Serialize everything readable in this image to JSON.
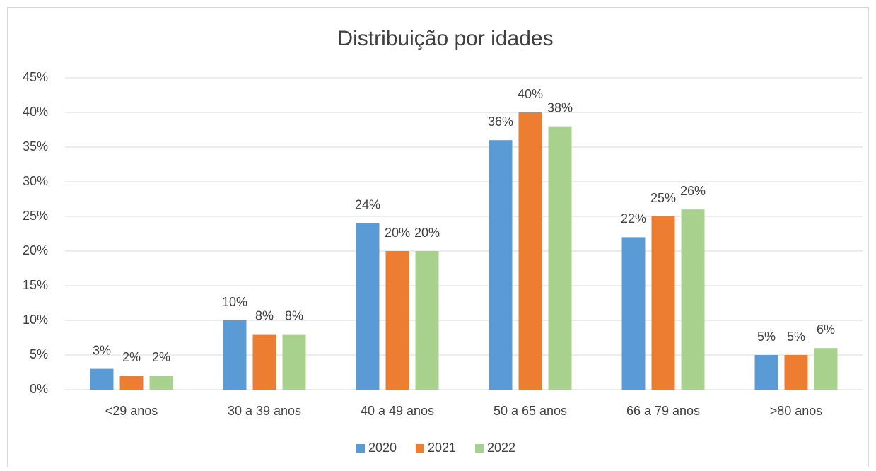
{
  "chart_data": {
    "type": "bar",
    "title": "Distribuição por idades",
    "categories": [
      "<29 anos",
      "30 a 39 anos",
      "40 a 49 anos",
      "50 a 65 anos",
      "66 a 79 anos",
      ">80 anos"
    ],
    "series": [
      {
        "name": "2020",
        "color": "#5b9bd5",
        "values": [
          3,
          10,
          24,
          36,
          22,
          5
        ],
        "value_labels": [
          "3%",
          "10%",
          "24%",
          "36%",
          "22%",
          "5%"
        ]
      },
      {
        "name": "2021",
        "color": "#ed7d31",
        "values": [
          2,
          8,
          20,
          40,
          25,
          5
        ],
        "value_labels": [
          "2%",
          "8%",
          "20%",
          "40%",
          "25%",
          "5%"
        ]
      },
      {
        "name": "2022",
        "color": "#a9d18e",
        "values": [
          2,
          8,
          20,
          38,
          26,
          6
        ],
        "value_labels": [
          "2%",
          "8%",
          "20%",
          "38%",
          "26%",
          "6%"
        ]
      }
    ],
    "ylim": [
      0,
      45
    ],
    "yticks": [
      {
        "value": 0,
        "label": "0%"
      },
      {
        "value": 5,
        "label": "5%"
      },
      {
        "value": 10,
        "label": "10%"
      },
      {
        "value": 15,
        "label": "15%"
      },
      {
        "value": 20,
        "label": "20%"
      },
      {
        "value": 25,
        "label": "25%"
      },
      {
        "value": 30,
        "label": "30%"
      },
      {
        "value": 35,
        "label": "35%"
      },
      {
        "value": 40,
        "label": "40%"
      },
      {
        "value": 45,
        "label": "45%"
      }
    ],
    "grid": true,
    "legend": "bottom"
  }
}
